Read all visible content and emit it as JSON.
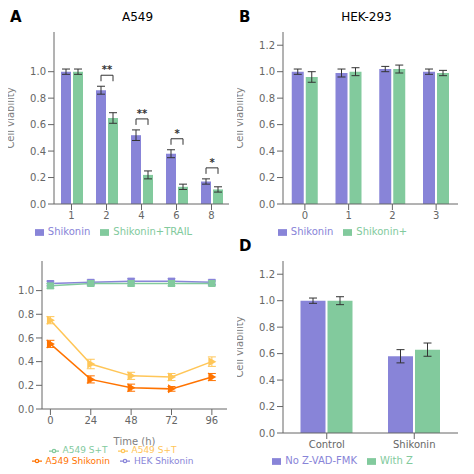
{
  "chart_data": [
    {
      "type": "bar",
      "title": "A549",
      "ylabel": "Cell viability",
      "categories": [
        "1",
        "2",
        "4",
        "6",
        "8"
      ],
      "series": [
        {
          "name": "Shikonin",
          "color": "#8884d8",
          "values": [
            1.0,
            0.86,
            0.52,
            0.38,
            0.17
          ],
          "errors": [
            0.02,
            0.03,
            0.04,
            0.03,
            0.02
          ]
        },
        {
          "name": "Shikonin+TRAIL",
          "color": "#82ca9d",
          "values": [
            1.0,
            0.65,
            0.22,
            0.13,
            0.11
          ],
          "errors": [
            0.02,
            0.04,
            0.03,
            0.02,
            0.02
          ]
        }
      ],
      "ylim": [
        0,
        1.3
      ],
      "yticks": [
        {
          "value": 0,
          "label": "0.0"
        },
        0.2,
        0.4,
        0.6,
        0.8,
        {
          "value": 1,
          "label": "1.0"
        }
      ],
      "grid": false,
      "legend": "bottom",
      "annotations": [
        {
          "text": "A"
        },
        {
          "x": "2",
          "text": "**"
        },
        {
          "x": "4",
          "text": "**"
        },
        {
          "x": "6",
          "text": "*"
        },
        {
          "x": "8",
          "text": "*"
        }
      ]
    },
    {
      "type": "bar",
      "title": "HEK-293",
      "ylabel": "Cell viability",
      "categories": [
        "0",
        "1",
        "2",
        "3"
      ],
      "series": [
        {
          "name": "Shikonin",
          "color": "#8884d8",
          "values": [
            1.0,
            0.99,
            1.02,
            1.0
          ],
          "errors": [
            0.02,
            0.03,
            0.02,
            0.02
          ]
        },
        {
          "name": "Shikonin+",
          "color": "#82ca9d",
          "values": [
            0.96,
            1.0,
            1.02,
            0.99
          ],
          "errors": [
            0.04,
            0.03,
            0.03,
            0.02
          ]
        }
      ],
      "ylim": [
        0,
        1.3
      ],
      "yticks": [
        {
          "value": 0,
          "label": "0.0"
        },
        0.2,
        0.4,
        0.6,
        0.8,
        {
          "value": 1,
          "label": "1.0"
        },
        1.2
      ],
      "grid": false,
      "legend": "bottom",
      "annotations": [
        {
          "text": "B"
        }
      ]
    },
    {
      "type": "line",
      "xlabel": "Time (h)",
      "x": [
        0,
        24,
        48,
        72,
        96
      ],
      "series": [
        {
          "name": "HEK Shikonin",
          "color": "#8884d8",
          "marker": "square",
          "values": [
            1.06,
            1.07,
            1.08,
            1.08,
            1.07
          ],
          "errors": [
            0.02,
            0.02,
            0.02,
            0.02,
            0.02
          ]
        },
        {
          "name": "A549 S+T",
          "color": "#82ca9d",
          "marker": "square",
          "values": [
            1.04,
            1.06,
            1.06,
            1.06,
            1.06
          ],
          "errors": [
            0.02,
            0.02,
            0.02,
            0.02,
            0.02
          ]
        },
        {
          "name": "A549 S+T",
          "color": "#ffc658",
          "marker": "triangle-right",
          "values": [
            0.75,
            0.38,
            0.28,
            0.27,
            0.4
          ],
          "errors": [
            0.03,
            0.04,
            0.03,
            0.03,
            0.04
          ]
        },
        {
          "name": "A549 Shikonin",
          "color": "#ff7300",
          "marker": "triangle-right",
          "values": [
            0.55,
            0.25,
            0.18,
            0.17,
            0.27
          ],
          "errors": [
            0.03,
            0.03,
            0.03,
            0.02,
            0.03
          ]
        }
      ],
      "xlim": [
        -5,
        105
      ],
      "xticks": [
        0,
        24,
        48,
        72,
        96
      ],
      "ylim": [
        0.0,
        1.25
      ],
      "yticks": [
        {
          "value": 0,
          "label": "0.0"
        },
        0.2,
        0.4,
        0.6,
        0.8,
        {
          "value": 1,
          "label": "1.0"
        }
      ],
      "grid": false,
      "legend": "bottom"
    },
    {
      "type": "bar",
      "ylabel": "Cell viability",
      "categories": [
        "Control",
        "Shikonin"
      ],
      "series": [
        {
          "name": "No Z-VAD-FMK",
          "color": "#8884d8",
          "values": [
            1.0,
            0.58
          ],
          "errors": [
            0.02,
            0.05
          ]
        },
        {
          "name": "With Z",
          "color": "#82ca9d",
          "values": [
            1.0,
            0.63
          ],
          "errors": [
            0.03,
            0.05
          ]
        }
      ],
      "ylim": [
        0,
        1.3
      ],
      "yticks": [
        {
          "value": 0,
          "label": "0.0"
        },
        0.2,
        0.4,
        0.6,
        0.8,
        {
          "value": 1,
          "label": "1.0"
        },
        1.2
      ],
      "grid": false,
      "legend": "bottom",
      "annotations": [
        {
          "text": "D"
        }
      ]
    }
  ]
}
